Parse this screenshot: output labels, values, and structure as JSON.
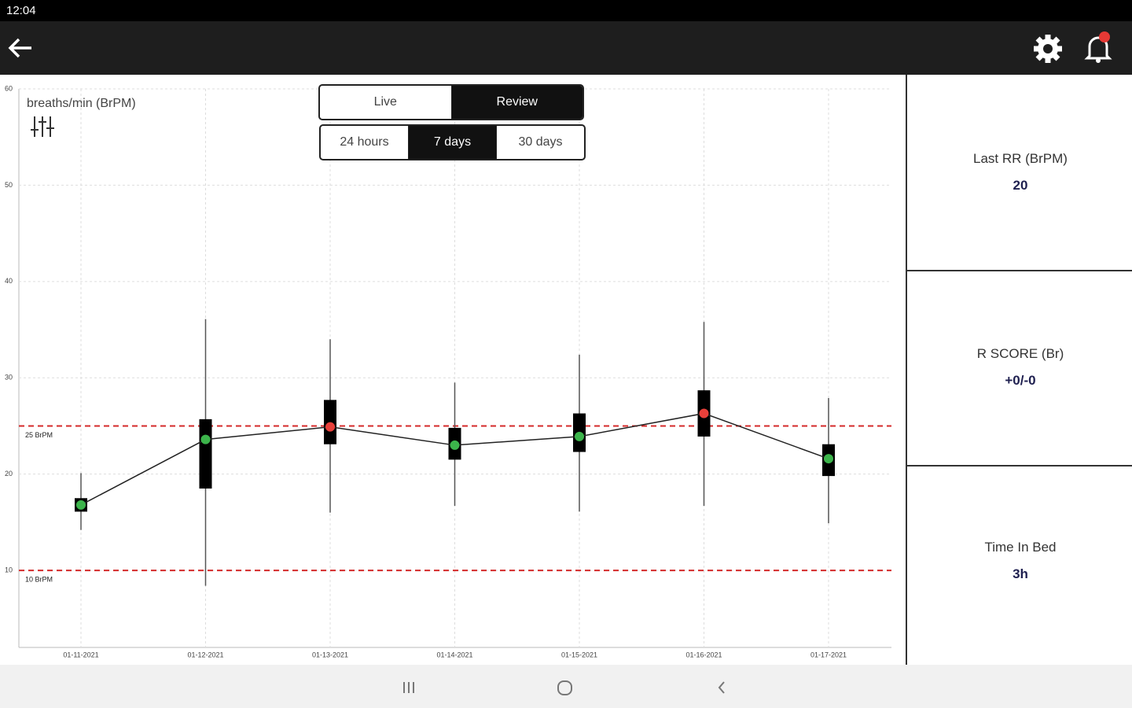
{
  "status_bar": {
    "time": "12:04"
  },
  "mode_toggle": {
    "options": [
      "Live",
      "Review"
    ],
    "active": 1
  },
  "range_toggle": {
    "options": [
      "24 hours",
      "7 days",
      "30 days"
    ],
    "active": 1
  },
  "cards": [
    {
      "label": "Last RR (BrPM)",
      "value": "20"
    },
    {
      "label": "R SCORE (Br)",
      "value": "+0/-0"
    },
    {
      "label": "Time In Bed",
      "value": "3h"
    }
  ],
  "chart_data": {
    "type": "box",
    "y_label": "breaths/min (BrPM)",
    "categories": [
      "01-11-2021",
      "01-12-2021",
      "01-13-2021",
      "01-14-2021",
      "01-15-2021",
      "01-16-2021",
      "01-17-2021"
    ],
    "whisker_low": [
      14.2,
      8.4,
      16.0,
      16.7,
      16.1,
      16.7,
      14.9
    ],
    "whisker_high": [
      20.1,
      36.1,
      34.0,
      29.5,
      32.4,
      35.8,
      27.9
    ],
    "box_low": [
      16.1,
      18.5,
      23.1,
      21.5,
      22.3,
      23.9,
      19.8
    ],
    "box_high": [
      17.5,
      25.7,
      27.7,
      24.8,
      26.3,
      28.7,
      23.1
    ],
    "values": [
      16.8,
      23.6,
      24.9,
      23.0,
      23.9,
      26.3,
      21.6
    ],
    "point_colors": [
      "#3cb44b",
      "#3cb44b",
      "#e8403a",
      "#3cb44b",
      "#3cb44b",
      "#e8403a",
      "#3cb44b"
    ],
    "box_color": "#000000",
    "line_color": "#222222",
    "thresholds": [
      {
        "value": 25,
        "label": "25 BrPM"
      },
      {
        "value": 10,
        "label": "10 BrPM"
      }
    ],
    "threshold_color": "#d42a2a",
    "ylim": [
      2,
      60
    ],
    "yticks": [
      10,
      20,
      30,
      40,
      50,
      60
    ],
    "grid": true
  }
}
